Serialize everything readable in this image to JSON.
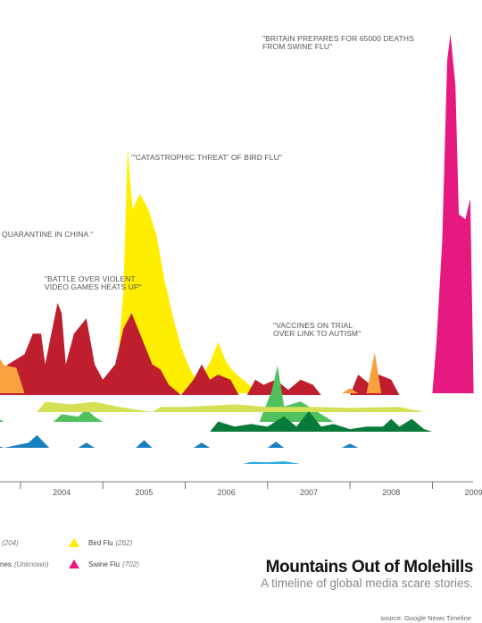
{
  "title": "Mountains Out of Molehills",
  "subtitle": "A timeline of global media scare stories.",
  "source": "source: Google News Timeline",
  "colors": {
    "bird_flu": "#ffee00",
    "swine_flu": "#e5197f",
    "violent_video_games": "#be1e2d",
    "orange_series": "#f9a03f",
    "light_green": "#50c15c",
    "yellow_green": "#d4e157",
    "dark_green": "#0a7a3a",
    "blue": "#1a7fc1",
    "cyan": "#29a9e1",
    "axis": "#555555"
  },
  "legend": [
    {
      "name": "(204)",
      "count": "",
      "icon": "none"
    },
    {
      "name": "Bird Flu",
      "count": "(262)",
      "icon": "triangle-yellow"
    },
    {
      "name": "nes",
      "count": "(Unknown)",
      "icon": "none"
    },
    {
      "name": "Swine Flu",
      "count": "(702)",
      "icon": "triangle-magenta"
    }
  ],
  "annotations": [
    {
      "text": "\"BRITAIN PREPARES FOR 65000 DEATHS\nFROM SWINE FLU\""
    },
    {
      "text": "\"'CATASTROPHIC THREAT' OF BIRD FLU\""
    },
    {
      "text": "QUARANTINE IN CHINA \""
    },
    {
      "text": "\"BATTLE OVER VIOLENT\nVIDEO GAMES HEATS UP\""
    },
    {
      "text": "\"VACCINES ON TRIAL\nOVER LINK TO AUTISM\""
    }
  ],
  "chart_data": {
    "type": "area",
    "x_axis": {
      "ticks": [
        "2004",
        "2005",
        "2006",
        "2007",
        "2008",
        "2009"
      ],
      "range": [
        2003.6,
        2009.5
      ]
    },
    "y_range": [
      0,
      702
    ],
    "series": [
      {
        "name": "Bird Flu",
        "count": 262,
        "color": "#ffee00",
        "points": [
          [
            2004.6,
            0
          ],
          [
            2004.65,
            90
          ],
          [
            2004.72,
            40
          ],
          [
            2004.8,
            0
          ],
          [
            2005.15,
            0
          ],
          [
            2005.25,
            200
          ],
          [
            2005.3,
            480
          ],
          [
            2005.36,
            360
          ],
          [
            2005.45,
            390
          ],
          [
            2005.55,
            360
          ],
          [
            2005.65,
            310
          ],
          [
            2005.75,
            220
          ],
          [
            2005.85,
            150
          ],
          [
            2005.95,
            90
          ],
          [
            2006.05,
            50
          ],
          [
            2006.15,
            20
          ],
          [
            2006.3,
            60
          ],
          [
            2006.4,
            100
          ],
          [
            2006.5,
            60
          ],
          [
            2006.6,
            40
          ],
          [
            2006.75,
            20
          ],
          [
            2006.9,
            0
          ]
        ]
      },
      {
        "name": "Swine Flu",
        "count": 702,
        "color": "#e5197f",
        "points": [
          [
            2009.0,
            0
          ],
          [
            2009.05,
            100
          ],
          [
            2009.12,
            300
          ],
          [
            2009.18,
            650
          ],
          [
            2009.22,
            702
          ],
          [
            2009.28,
            600
          ],
          [
            2009.32,
            350
          ],
          [
            2009.4,
            340
          ],
          [
            2009.46,
            380
          ],
          [
            2009.5,
            0
          ]
        ]
      },
      {
        "name": "",
        "color": "#be1e2d",
        "points": [
          [
            2003.6,
            0
          ],
          [
            2003.7,
            40
          ],
          [
            2003.85,
            60
          ],
          [
            2004.05,
            80
          ],
          [
            2004.15,
            120
          ],
          [
            2004.25,
            120
          ],
          [
            2004.3,
            60
          ],
          [
            2004.35,
            100
          ],
          [
            2004.45,
            180
          ],
          [
            2004.5,
            160
          ],
          [
            2004.55,
            60
          ],
          [
            2004.65,
            120
          ],
          [
            2004.8,
            150
          ],
          [
            2004.9,
            60
          ],
          [
            2005.0,
            30
          ],
          [
            2005.15,
            60
          ],
          [
            2005.25,
            130
          ],
          [
            2005.35,
            160
          ],
          [
            2005.5,
            100
          ],
          [
            2005.6,
            60
          ],
          [
            2005.7,
            50
          ],
          [
            2005.8,
            20
          ],
          [
            2005.95,
            0
          ],
          [
            2006.1,
            30
          ],
          [
            2006.2,
            60
          ],
          [
            2006.3,
            30
          ],
          [
            2006.4,
            40
          ],
          [
            2006.55,
            30
          ],
          [
            2006.65,
            0
          ],
          [
            2006.75,
            0
          ],
          [
            2006.85,
            30
          ],
          [
            2006.95,
            20
          ],
          [
            2007.1,
            30
          ],
          [
            2007.25,
            10
          ],
          [
            2007.4,
            30
          ],
          [
            2007.55,
            20
          ],
          [
            2007.65,
            0
          ],
          [
            2007.8,
            0
          ],
          [
            2008.0,
            0
          ],
          [
            2008.1,
            40
          ],
          [
            2008.25,
            20
          ],
          [
            2008.35,
            40
          ],
          [
            2008.5,
            30
          ],
          [
            2008.6,
            0
          ]
        ]
      },
      {
        "name": "",
        "color": "#f9a03f",
        "points": [
          [
            2003.6,
            60
          ],
          [
            2003.7,
            80
          ],
          [
            2003.8,
            55
          ],
          [
            2003.95,
            50
          ],
          [
            2004.05,
            0
          ],
          [
            2007.9,
            0
          ],
          [
            2008.0,
            10
          ],
          [
            2008.1,
            0
          ],
          [
            2008.2,
            0
          ],
          [
            2008.3,
            80
          ],
          [
            2008.38,
            0
          ]
        ]
      },
      {
        "name": "",
        "color": "#50c15c",
        "points": [
          [
            2003.6,
            20
          ],
          [
            2003.8,
            0
          ],
          [
            2004.4,
            0
          ],
          [
            2004.5,
            15
          ],
          [
            2004.7,
            10
          ],
          [
            2004.8,
            25
          ],
          [
            2004.9,
            10
          ],
          [
            2005.0,
            0
          ],
          [
            2006.9,
            0
          ],
          [
            2007.05,
            60
          ],
          [
            2007.12,
            110
          ],
          [
            2007.2,
            30
          ],
          [
            2007.4,
            40
          ],
          [
            2007.6,
            20
          ],
          [
            2007.8,
            0
          ]
        ]
      },
      {
        "name": "",
        "color": "#d4e157",
        "points": [
          [
            2004.2,
            0
          ],
          [
            2004.3,
            20
          ],
          [
            2004.6,
            15
          ],
          [
            2004.9,
            20
          ],
          [
            2005.2,
            10
          ],
          [
            2005.6,
            0
          ],
          [
            2005.7,
            10
          ],
          [
            2006.0,
            10
          ],
          [
            2006.6,
            15
          ],
          [
            2007.0,
            10
          ],
          [
            2007.6,
            10
          ],
          [
            2008.0,
            8
          ],
          [
            2008.6,
            10
          ],
          [
            2008.9,
            0
          ]
        ]
      },
      {
        "name": "",
        "color": "#0a7a3a",
        "points": [
          [
            2006.3,
            0
          ],
          [
            2006.4,
            20
          ],
          [
            2006.6,
            10
          ],
          [
            2006.8,
            15
          ],
          [
            2007.0,
            10
          ],
          [
            2007.2,
            30
          ],
          [
            2007.35,
            10
          ],
          [
            2007.5,
            40
          ],
          [
            2007.65,
            10
          ],
          [
            2007.8,
            15
          ],
          [
            2008.0,
            5
          ],
          [
            2008.2,
            10
          ],
          [
            2008.4,
            10
          ],
          [
            2008.5,
            25
          ],
          [
            2008.6,
            10
          ],
          [
            2008.75,
            25
          ],
          [
            2008.9,
            5
          ],
          [
            2009.0,
            0
          ]
        ]
      },
      {
        "name": "",
        "color": "#1a7fc1",
        "points": [
          [
            2003.6,
            10
          ],
          [
            2003.8,
            0
          ],
          [
            2004.1,
            10
          ],
          [
            2004.2,
            25
          ],
          [
            2004.35,
            0
          ],
          [
            2004.7,
            0
          ],
          [
            2004.8,
            10
          ],
          [
            2004.9,
            0
          ],
          [
            2005.4,
            0
          ],
          [
            2005.5,
            15
          ],
          [
            2005.6,
            0
          ],
          [
            2006.1,
            0
          ],
          [
            2006.2,
            10
          ],
          [
            2006.3,
            0
          ],
          [
            2007.0,
            0
          ],
          [
            2007.1,
            12
          ],
          [
            2007.2,
            0
          ],
          [
            2007.9,
            0
          ],
          [
            2008.0,
            8
          ],
          [
            2008.1,
            0
          ]
        ]
      },
      {
        "name": "",
        "color": "#29a9e1",
        "points": [
          [
            2006.7,
            0
          ],
          [
            2006.8,
            4
          ],
          [
            2007.0,
            3
          ],
          [
            2007.2,
            5
          ],
          [
            2007.4,
            0
          ]
        ]
      }
    ]
  }
}
